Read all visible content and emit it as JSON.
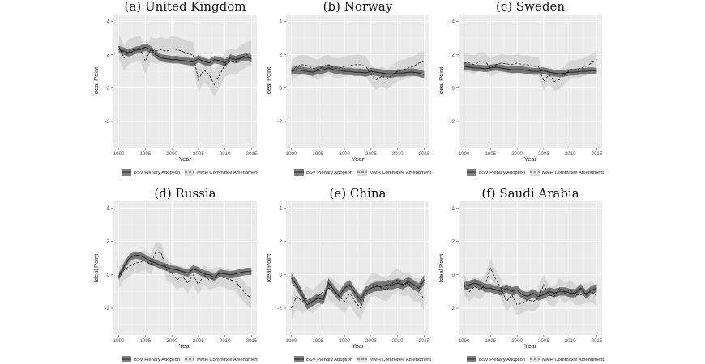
{
  "figure": {
    "legend": {
      "solid": "BSV Plenary Adoption",
      "dashed": "MMH Committee Amendment"
    },
    "xlabel": "Year",
    "ylabel": "Ideal Point"
  },
  "chart_data": [
    {
      "type": "line",
      "title": "(a) United Kingdom",
      "xlabel": "Year",
      "ylabel": "Ideal Point",
      "xlim": [
        1989,
        2016
      ],
      "ylim": [
        -3.6,
        4.4
      ],
      "x_ticks": [
        1990,
        1995,
        2000,
        2005,
        2010,
        2015
      ],
      "y_ticks": [
        -2,
        0,
        2,
        4
      ],
      "grid": true,
      "legend_position": "bottom",
      "x": [
        1990,
        1991,
        1992,
        1993,
        1994,
        1995,
        1996,
        1997,
        1998,
        1999,
        2000,
        2001,
        2002,
        2003,
        2004,
        2005,
        2006,
        2007,
        2008,
        2009,
        2010,
        2011,
        2012,
        2013,
        2014,
        2015
      ],
      "series": [
        {
          "name": "BSV Plenary Adoption",
          "style": "solid",
          "values": [
            2.3,
            2.2,
            2.1,
            2.25,
            2.3,
            2.45,
            2.3,
            2.0,
            1.8,
            1.75,
            1.7,
            1.7,
            1.65,
            1.6,
            1.55,
            1.75,
            1.6,
            1.5,
            1.7,
            1.65,
            1.5,
            1.8,
            1.7,
            1.8,
            1.85,
            1.75
          ],
          "band_halfwidth": 0.22
        },
        {
          "name": "MMH Committee Amendment",
          "style": "dashed",
          "values": [
            2.5,
            1.8,
            2.2,
            2.3,
            2.4,
            1.6,
            2.3,
            2.2,
            2.3,
            2.2,
            2.35,
            2.3,
            2.2,
            2.05,
            2.0,
            0.5,
            1.1,
            0.8,
            0.2,
            0.8,
            1.4,
            1.6,
            1.55,
            1.8,
            2.0,
            2.1
          ],
          "band_halfwidth": 0.75
        }
      ]
    },
    {
      "type": "line",
      "title": "(b) Norway",
      "xlabel": "Year",
      "ylabel": "Ideal Point",
      "xlim": [
        1989,
        2016
      ],
      "ylim": [
        -3.6,
        4.4
      ],
      "x_ticks": [
        1990,
        1995,
        2000,
        2005,
        2010,
        2015
      ],
      "y_ticks": [
        -2,
        0,
        2,
        4
      ],
      "grid": true,
      "legend_position": "bottom",
      "x": [
        1990,
        1991,
        1992,
        1993,
        1994,
        1995,
        1996,
        1997,
        1998,
        1999,
        2000,
        2001,
        2002,
        2003,
        2004,
        2005,
        2006,
        2007,
        2008,
        2009,
        2010,
        2011,
        2012,
        2013,
        2014,
        2015
      ],
      "series": [
        {
          "name": "BSV Plenary Adoption",
          "style": "solid",
          "values": [
            1.0,
            1.1,
            1.05,
            1.0,
            0.95,
            1.05,
            1.1,
            1.2,
            1.1,
            1.05,
            1.0,
            1.0,
            0.95,
            0.95,
            0.9,
            1.0,
            0.95,
            0.9,
            0.85,
            0.85,
            0.9,
            0.9,
            0.95,
            0.95,
            0.9,
            0.8
          ],
          "band_halfwidth": 0.22
        },
        {
          "name": "MMH Committee Amendment",
          "style": "dashed",
          "values": [
            1.0,
            1.3,
            1.4,
            1.35,
            1.2,
            1.1,
            1.3,
            1.4,
            1.2,
            1.2,
            1.3,
            1.35,
            1.4,
            1.4,
            1.3,
            0.8,
            0.5,
            0.7,
            0.5,
            0.8,
            1.0,
            1.1,
            1.2,
            1.3,
            1.5,
            1.6
          ],
          "band_halfwidth": 0.6
        }
      ]
    },
    {
      "type": "line",
      "title": "(c) Sweden",
      "xlabel": "Year",
      "ylabel": "Ideal Point",
      "xlim": [
        1989,
        2016
      ],
      "ylim": [
        -3.6,
        4.4
      ],
      "x_ticks": [
        1990,
        1995,
        2000,
        2005,
        2010,
        2015
      ],
      "y_ticks": [
        -2,
        0,
        2,
        4
      ],
      "grid": true,
      "legend_position": "bottom",
      "x": [
        1990,
        1991,
        1992,
        1993,
        1994,
        1995,
        1996,
        1997,
        1998,
        1999,
        2000,
        2001,
        2002,
        2003,
        2004,
        2005,
        2006,
        2007,
        2008,
        2009,
        2010,
        2011,
        2012,
        2013,
        2014,
        2015
      ],
      "series": [
        {
          "name": "BSV Plenary Adoption",
          "style": "solid",
          "values": [
            1.3,
            1.25,
            1.2,
            1.2,
            1.15,
            1.2,
            1.25,
            1.2,
            1.15,
            1.1,
            1.1,
            1.1,
            1.05,
            1.0,
            1.0,
            1.05,
            0.95,
            0.9,
            0.85,
            0.9,
            0.95,
            0.95,
            1.0,
            1.0,
            1.05,
            1.0
          ],
          "band_halfwidth": 0.2
        },
        {
          "name": "MMH Committee Amendment",
          "style": "dashed",
          "values": [
            1.5,
            1.5,
            1.4,
            1.6,
            1.6,
            1.2,
            1.4,
            1.5,
            1.45,
            1.4,
            1.5,
            1.4,
            1.4,
            1.3,
            1.3,
            0.4,
            0.8,
            0.4,
            0.5,
            0.8,
            1.1,
            1.1,
            1.2,
            1.3,
            1.5,
            1.7
          ],
          "band_halfwidth": 0.55
        }
      ]
    },
    {
      "type": "line",
      "title": "(d) Russia",
      "xlabel": "Year",
      "ylabel": "Ideal Point",
      "xlim": [
        1989,
        2016
      ],
      "ylim": [
        -3.6,
        4.4
      ],
      "x_ticks": [
        1990,
        1995,
        2000,
        2005,
        2010,
        2015
      ],
      "y_ticks": [
        -2,
        0,
        2,
        4
      ],
      "grid": true,
      "legend_position": "bottom",
      "x": [
        1990,
        1991,
        1992,
        1993,
        1994,
        1995,
        1996,
        1997,
        1998,
        1999,
        2000,
        2001,
        2002,
        2003,
        2004,
        2005,
        2006,
        2007,
        2008,
        2009,
        2010,
        2011,
        2012,
        2013,
        2014,
        2015
      ],
      "series": [
        {
          "name": "BSV Plenary Adoption",
          "style": "solid",
          "values": [
            -0.1,
            0.5,
            1.0,
            1.2,
            1.15,
            1.0,
            0.8,
            0.7,
            0.55,
            0.45,
            0.35,
            0.3,
            0.2,
            0.1,
            0.35,
            0.25,
            0.05,
            0.0,
            -0.15,
            0.1,
            0.05,
            0.0,
            0.05,
            0.15,
            0.2,
            0.2
          ],
          "band_halfwidth": 0.22
        },
        {
          "name": "MMH Committee Amendment",
          "style": "dashed",
          "values": [
            -0.2,
            0.3,
            0.5,
            0.7,
            0.75,
            0.9,
            0.6,
            1.4,
            1.3,
            0.3,
            0.1,
            -0.3,
            -0.1,
            -0.5,
            0.0,
            -0.6,
            0.0,
            -0.3,
            -0.2,
            -0.1,
            -0.2,
            -0.3,
            -0.4,
            -0.8,
            -1.2,
            -1.4
          ],
          "band_halfwidth": 0.6
        }
      ]
    },
    {
      "type": "line",
      "title": "(e) China",
      "xlabel": "Year",
      "ylabel": "Ideal Point",
      "xlim": [
        1989,
        2016
      ],
      "ylim": [
        -3.6,
        4.4
      ],
      "x_ticks": [
        1990,
        1995,
        2000,
        2005,
        2010,
        2015
      ],
      "y_ticks": [
        -2,
        0,
        2,
        4
      ],
      "grid": true,
      "legend_position": "bottom",
      "x": [
        1990,
        1991,
        1992,
        1993,
        1994,
        1995,
        1996,
        1997,
        1998,
        1999,
        2000,
        2001,
        2002,
        2003,
        2004,
        2005,
        2006,
        2007,
        2008,
        2009,
        2010,
        2011,
        2012,
        2013,
        2014,
        2015
      ],
      "series": [
        {
          "name": "BSV Plenary Adoption",
          "style": "solid",
          "values": [
            -0.2,
            -0.6,
            -1.2,
            -1.8,
            -1.6,
            -1.4,
            -1.5,
            -0.5,
            -0.9,
            -1.3,
            -0.8,
            -0.6,
            -1.1,
            -1.5,
            -1.0,
            -0.8,
            -0.7,
            -0.7,
            -0.6,
            -0.6,
            -0.5,
            -0.6,
            -0.4,
            -0.6,
            -0.8,
            -0.3
          ],
          "band_halfwidth": 0.28
        },
        {
          "name": "MMH Committee Amendment",
          "style": "dashed",
          "values": [
            -2.0,
            -1.3,
            -1.6,
            -1.4,
            -1.6,
            -1.3,
            -1.0,
            -0.8,
            -1.0,
            -1.3,
            -1.6,
            -1.1,
            -1.6,
            -2.0,
            -1.2,
            -0.6,
            -0.6,
            -0.8,
            -0.9,
            -0.5,
            -0.3,
            -0.6,
            -0.5,
            -0.9,
            -0.9,
            -1.5
          ],
          "band_halfwidth": 0.7
        }
      ]
    },
    {
      "type": "line",
      "title": "(f) Saudi Arabia",
      "xlabel": "Year",
      "ylabel": "Ideal Point",
      "xlim": [
        1989,
        2016
      ],
      "ylim": [
        -3.6,
        4.4
      ],
      "x_ticks": [
        1990,
        1995,
        2000,
        2005,
        2010,
        2015
      ],
      "y_ticks": [
        -2,
        0,
        2,
        4
      ],
      "grid": true,
      "legend_position": "bottom",
      "x": [
        1990,
        1991,
        1992,
        1993,
        1994,
        1995,
        1996,
        1997,
        1998,
        1999,
        2000,
        2001,
        2002,
        2003,
        2004,
        2005,
        2006,
        2007,
        2008,
        2009,
        2010,
        2011,
        2012,
        2013,
        2014,
        2015
      ],
      "series": [
        {
          "name": "BSV Plenary Adoption",
          "style": "solid",
          "values": [
            -0.7,
            -0.6,
            -0.5,
            -0.6,
            -0.8,
            -0.8,
            -0.9,
            -1.0,
            -0.8,
            -1.0,
            -0.9,
            -1.2,
            -1.3,
            -1.1,
            -1.3,
            -1.2,
            -1.0,
            -1.1,
            -1.0,
            -1.0,
            -1.1,
            -1.1,
            -0.8,
            -1.2,
            -0.9,
            -0.8
          ],
          "band_halfwidth": 0.25
        },
        {
          "name": "MMH Committee Amendment",
          "style": "dashed",
          "values": [
            -0.6,
            -1.0,
            -0.7,
            -0.9,
            -0.6,
            0.4,
            -0.3,
            -0.8,
            -1.6,
            -1.2,
            -1.8,
            -1.7,
            -1.5,
            -1.6,
            -1.4,
            -0.6,
            -1.2,
            -1.3,
            -0.8,
            -1.1,
            -0.9,
            -1.2,
            -1.2,
            -1.1,
            -1.0,
            -1.3
          ],
          "band_halfwidth": 0.6
        }
      ]
    }
  ]
}
